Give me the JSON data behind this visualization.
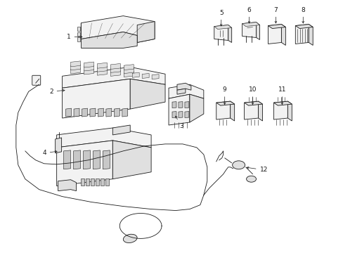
{
  "background_color": "#ffffff",
  "line_color": "#1a1a1a",
  "fill_light": "#f2f2f2",
  "fill_mid": "#e0e0e0",
  "fill_dark": "#c8c8c8",
  "lw_main": 0.6,
  "lw_thin": 0.4,
  "fig_width": 4.89,
  "fig_height": 3.6,
  "dpi": 100,
  "label_fontsize": 6.5
}
